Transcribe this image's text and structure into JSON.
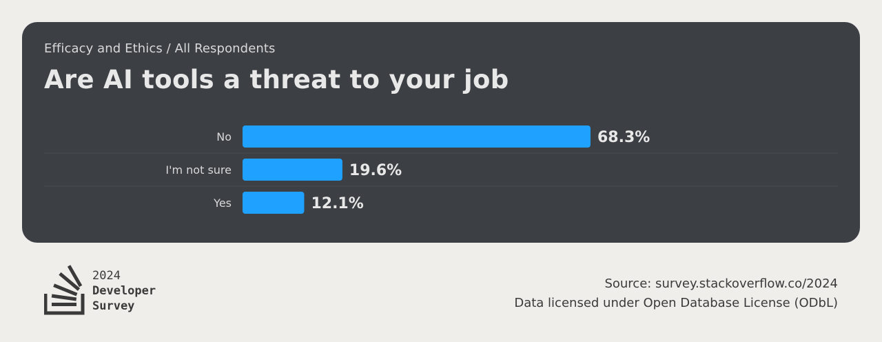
{
  "header": {
    "breadcrumb": "Efficacy and Ethics / All Respondents",
    "title": "Are AI tools a threat to your job"
  },
  "chart_data": {
    "type": "bar",
    "orientation": "horizontal",
    "categories": [
      "No",
      "I'm not sure",
      "Yes"
    ],
    "values": [
      68.3,
      19.6,
      12.1
    ],
    "value_labels": [
      "68.3%",
      "19.6%",
      "12.1%"
    ],
    "title": "Are AI tools a threat to your job",
    "bar_color": "#1ea1ff",
    "grid": false
  },
  "footer": {
    "logo": {
      "year": "2024",
      "line1": "Developer",
      "line2": "Survey",
      "icon": "stackoverflow-logo-icon"
    },
    "source": "Source: survey.stackoverflow.co/2024",
    "license": "Data licensed under Open Database License (ODbL)"
  },
  "colors": {
    "card_bg": "#3c3f43",
    "page_bg": "#efeeeb",
    "bar": "#1ea1ff"
  }
}
